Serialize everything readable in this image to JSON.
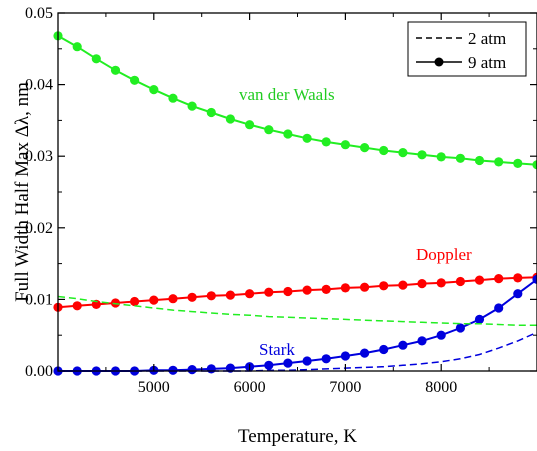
{
  "chart_data": {
    "type": "line",
    "title": "",
    "xlabel": "Temperature, K",
    "ylabel": "Full Width Half Max Δλ, nm",
    "xlim": [
      4000,
      9000
    ],
    "ylim": [
      0,
      0.05
    ],
    "xticks": [
      5000,
      6000,
      7000,
      8000
    ],
    "xtick_labels": [
      "5000",
      "6000",
      "7000",
      "8000"
    ],
    "yticks": [
      0.0,
      0.01,
      0.02,
      0.03,
      0.04,
      0.05
    ],
    "ytick_labels": [
      "0.00",
      "0.01",
      "0.02",
      "0.03",
      "0.04",
      "0.05"
    ],
    "grid": false,
    "legend": {
      "position": "top-right",
      "entries": [
        {
          "label": "2 atm",
          "style": "dashed"
        },
        {
          "label": "9 atm",
          "style": "solid-with-markers"
        }
      ]
    },
    "annotations": [
      {
        "text": "van der Waals",
        "color": "#22cc22"
      },
      {
        "text": "Doppler",
        "color": "#ff0000"
      },
      {
        "text": "Stark",
        "color": "#0000dd"
      }
    ],
    "x": [
      4000,
      4200,
      4400,
      4600,
      4800,
      5000,
      5200,
      5400,
      5600,
      5800,
      6000,
      6200,
      6400,
      6600,
      6800,
      7000,
      7200,
      7400,
      7600,
      7800,
      8000,
      8200,
      8400,
      8600,
      8800,
      9000
    ],
    "series": [
      {
        "group": "van der Waals",
        "pressure": "9 atm",
        "style": "solid-with-markers",
        "color": "#22ee22",
        "values": [
          0.0468,
          0.0453,
          0.0436,
          0.042,
          0.0406,
          0.0393,
          0.0381,
          0.037,
          0.0361,
          0.0352,
          0.0344,
          0.0337,
          0.0331,
          0.0325,
          0.032,
          0.0316,
          0.0312,
          0.0308,
          0.0305,
          0.0302,
          0.0299,
          0.0297,
          0.0294,
          0.0292,
          0.029,
          0.0288
        ]
      },
      {
        "group": "Doppler",
        "pressure": "9 atm",
        "style": "solid-with-markers",
        "color": "#ff0000",
        "values": [
          0.0089,
          0.0091,
          0.0093,
          0.0095,
          0.0097,
          0.0099,
          0.0101,
          0.0103,
          0.0105,
          0.0106,
          0.0108,
          0.011,
          0.0111,
          0.0113,
          0.0114,
          0.0116,
          0.0117,
          0.0119,
          0.012,
          0.0122,
          0.0123,
          0.0125,
          0.0127,
          0.0129,
          0.013,
          0.0131
        ]
      },
      {
        "group": "Stark",
        "pressure": "9 atm",
        "style": "solid-with-markers",
        "color": "#0000dd",
        "values": [
          0.0,
          0.0,
          0.0,
          0.0,
          0.0,
          0.0001,
          0.0001,
          0.0002,
          0.0003,
          0.0004,
          0.0006,
          0.0008,
          0.0011,
          0.0014,
          0.0017,
          0.0021,
          0.0025,
          0.003,
          0.0036,
          0.0042,
          0.005,
          0.006,
          0.0072,
          0.0088,
          0.0108,
          0.0128
        ]
      },
      {
        "group": "van der Waals",
        "pressure": "2 atm",
        "style": "dashed",
        "color": "#22ee22",
        "values": [
          0.0104,
          0.0101,
          0.0097,
          0.0094,
          0.0091,
          0.0088,
          0.0085,
          0.0083,
          0.0081,
          0.0079,
          0.0078,
          0.0076,
          0.0075,
          0.0074,
          0.0073,
          0.0072,
          0.0071,
          0.007,
          0.0069,
          0.0068,
          0.0067,
          0.0066,
          0.0066,
          0.0065,
          0.0064,
          0.0064
        ]
      },
      {
        "group": "Stark",
        "pressure": "2 atm",
        "style": "dashed",
        "color": "#0000dd",
        "values": [
          0.0,
          0.0,
          0.0,
          0.0,
          0.0,
          0.0,
          0.0,
          0.0,
          0.0,
          0.0,
          0.0,
          0.0001,
          0.0001,
          0.0002,
          0.0003,
          0.0004,
          0.0005,
          0.0006,
          0.0008,
          0.001,
          0.0013,
          0.0017,
          0.0023,
          0.0032,
          0.0042,
          0.0054
        ]
      }
    ]
  }
}
